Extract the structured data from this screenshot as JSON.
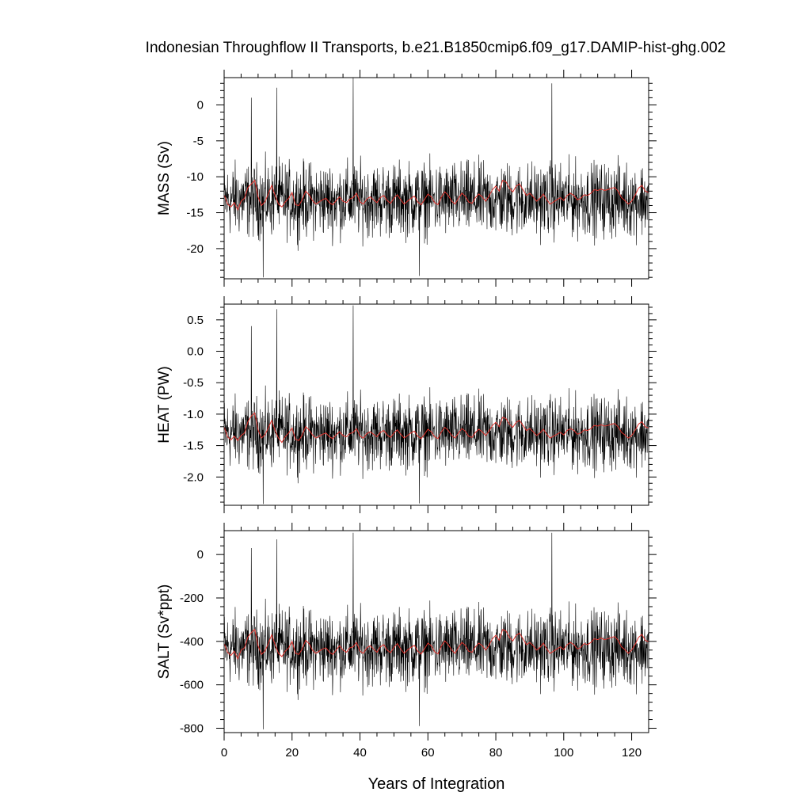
{
  "title": "Indonesian Throughflow II Transports, b.e21.B1850cmip6.f09_g17.DAMIP-hist-ghg.002",
  "xlabel": "Years of Integration",
  "colors": {
    "raw": "#000000",
    "smooth": "#e0302a",
    "frame": "#000000"
  },
  "chart_data": [
    {
      "type": "line",
      "ylabel": "MASS (Sv)",
      "xlim": [
        0,
        125
      ],
      "ylim": [
        -24.2,
        3.8
      ],
      "x_ticks": [
        0,
        20,
        40,
        60,
        80,
        100,
        120
      ],
      "x_tick_labels": [
        "0",
        "20",
        "40",
        "60",
        "80",
        "100",
        "120"
      ],
      "y_ticks": [
        0,
        -5,
        -10,
        -15,
        -20
      ],
      "y_tick_labels": [
        "0",
        "-5",
        "-10",
        "-15",
        "-20"
      ],
      "series": [
        {
          "role": "monthly",
          "mean": -13.2,
          "amp": 4.0,
          "samples_per_year": 12,
          "spikes": [
            [
              8,
              1.0
            ],
            [
              15.5,
              2.4
            ],
            [
              38,
              3.8
            ],
            [
              96.5,
              3.0
            ],
            [
              11.5,
              -24.0
            ],
            [
              57.5,
              -23.8
            ]
          ]
        },
        {
          "role": "annual-smooth",
          "values": [
            -12.5,
            -13.8,
            -14.2,
            -13.6,
            -14.6,
            -13.4,
            -13.0,
            -11.5,
            -11.0,
            -10.5,
            -12.8,
            -14.0,
            -13.5,
            -12.4,
            -11.2,
            -12.6,
            -13.8,
            -14.2,
            -13.5,
            -13.0,
            -12.2,
            -13.9,
            -14.0,
            -13.2,
            -12.0,
            -12.5,
            -13.3,
            -13.8,
            -13.5,
            -13.2,
            -13.0,
            -13.6,
            -13.9,
            -13.3,
            -12.8,
            -13.4,
            -13.6,
            -13.1,
            -12.9,
            -12.3,
            -13.5,
            -13.8,
            -13.1,
            -12.8,
            -13.2,
            -13.6,
            -12.9,
            -12.6,
            -13.3,
            -13.7,
            -13.0,
            -12.5,
            -13.2,
            -13.8,
            -13.4,
            -13.0,
            -12.7,
            -13.5,
            -13.9,
            -13.2,
            -12.4,
            -12.8,
            -13.6,
            -13.9,
            -12.8,
            -12.1,
            -12.6,
            -13.4,
            -13.8,
            -13.0,
            -12.3,
            -12.7,
            -13.5,
            -13.7,
            -12.9,
            -12.4,
            -12.8,
            -13.4,
            -12.7,
            -11.8,
            -11.3,
            -12.0,
            -10.5,
            -10.7,
            -11.6,
            -12.1,
            -11.3,
            -11.0,
            -11.8,
            -12.6,
            -12.3,
            -12.8,
            -13.4,
            -13.0,
            -12.4,
            -13.2,
            -13.8,
            -13.5,
            -13.2,
            -12.9,
            -13.3,
            -12.6,
            -12.3,
            -12.6,
            -13.2,
            -13.0,
            -12.5,
            -12.6,
            -12.3,
            -11.8,
            -11.9,
            -11.7,
            -11.9,
            -11.8,
            -11.6,
            -11.5,
            -12.0,
            -12.9,
            -13.3,
            -13.8,
            -13.4,
            -12.6,
            -11.6,
            -11.2,
            -12.0,
            -12.2
          ]
        }
      ]
    },
    {
      "type": "line",
      "ylabel": "HEAT (PW)",
      "xlim": [
        0,
        125
      ],
      "ylim": [
        -2.45,
        0.75
      ],
      "x_ticks": [
        0,
        20,
        40,
        60,
        80,
        100,
        120
      ],
      "x_tick_labels": [
        "0",
        "20",
        "40",
        "60",
        "80",
        "100",
        "120"
      ],
      "y_ticks": [
        0.5,
        0.0,
        -0.5,
        -1.0,
        -1.5,
        -2.0
      ],
      "y_tick_labels": [
        "0.5",
        "0.0",
        "-0.5",
        "-1.0",
        "-1.5",
        "-2.0"
      ],
      "series": [
        {
          "role": "monthly",
          "mean": -1.3,
          "amp": 0.45,
          "samples_per_year": 12,
          "spikes": [
            [
              8,
              0.4
            ],
            [
              15.5,
              0.67
            ],
            [
              38,
              0.73
            ],
            [
              11.5,
              -2.43
            ],
            [
              57.5,
              -2.42
            ]
          ]
        },
        {
          "role": "annual-smooth",
          "values": [
            -1.2,
            -1.36,
            -1.41,
            -1.35,
            -1.42,
            -1.34,
            -1.3,
            -1.12,
            -1.03,
            -0.98,
            -1.25,
            -1.38,
            -1.33,
            -1.22,
            -1.1,
            -1.26,
            -1.38,
            -1.45,
            -1.36,
            -1.3,
            -1.22,
            -1.4,
            -1.42,
            -1.33,
            -1.2,
            -1.25,
            -1.33,
            -1.38,
            -1.35,
            -1.32,
            -1.3,
            -1.36,
            -1.39,
            -1.33,
            -1.28,
            -1.34,
            -1.36,
            -1.31,
            -1.29,
            -1.23,
            -1.35,
            -1.38,
            -1.31,
            -1.28,
            -1.32,
            -1.36,
            -1.29,
            -1.26,
            -1.33,
            -1.37,
            -1.3,
            -1.25,
            -1.32,
            -1.38,
            -1.34,
            -1.3,
            -1.27,
            -1.35,
            -1.39,
            -1.32,
            -1.24,
            -1.28,
            -1.36,
            -1.39,
            -1.28,
            -1.21,
            -1.26,
            -1.34,
            -1.38,
            -1.3,
            -1.23,
            -1.27,
            -1.35,
            -1.37,
            -1.29,
            -1.24,
            -1.28,
            -1.34,
            -1.27,
            -1.18,
            -1.13,
            -1.2,
            -1.05,
            -1.07,
            -1.16,
            -1.21,
            -1.13,
            -1.1,
            -1.18,
            -1.26,
            -1.23,
            -1.28,
            -1.34,
            -1.3,
            -1.24,
            -1.32,
            -1.38,
            -1.35,
            -1.32,
            -1.29,
            -1.33,
            -1.26,
            -1.23,
            -1.26,
            -1.32,
            -1.3,
            -1.25,
            -1.26,
            -1.23,
            -1.18,
            -1.19,
            -1.17,
            -1.19,
            -1.18,
            -1.16,
            -1.15,
            -1.2,
            -1.29,
            -1.33,
            -1.38,
            -1.34,
            -1.26,
            -1.16,
            -1.12,
            -1.2,
            -1.22
          ]
        }
      ]
    },
    {
      "type": "line",
      "ylabel": "SALT (Sv*ppt)",
      "xlim": [
        0,
        125
      ],
      "ylim": [
        -820,
        110
      ],
      "x_ticks": [
        0,
        20,
        40,
        60,
        80,
        100,
        120
      ],
      "x_tick_labels": [
        "0",
        "20",
        "40",
        "60",
        "80",
        "100",
        "120"
      ],
      "y_ticks": [
        0,
        -200,
        -400,
        -600,
        -800
      ],
      "y_tick_labels": [
        "0",
        "-200",
        "-400",
        "-600",
        "-800"
      ],
      "series": [
        {
          "role": "monthly",
          "mean": -430,
          "amp": 135,
          "samples_per_year": 12,
          "spikes": [
            [
              8,
              30
            ],
            [
              15.5,
              70
            ],
            [
              38,
              100
            ],
            [
              96.5,
              100
            ],
            [
              11.5,
              -805
            ],
            [
              57.5,
              -790
            ]
          ]
        },
        {
          "role": "annual-smooth",
          "values": [
            -410,
            -450,
            -465,
            -445,
            -480,
            -440,
            -430,
            -380,
            -360,
            -345,
            -420,
            -460,
            -445,
            -410,
            -370,
            -415,
            -455,
            -470,
            -445,
            -430,
            -400,
            -455,
            -460,
            -435,
            -395,
            -410,
            -440,
            -455,
            -445,
            -435,
            -430,
            -450,
            -460,
            -440,
            -420,
            -440,
            -450,
            -430,
            -425,
            -405,
            -445,
            -455,
            -430,
            -420,
            -435,
            -450,
            -425,
            -415,
            -440,
            -452,
            -428,
            -410,
            -435,
            -455,
            -440,
            -428,
            -418,
            -445,
            -458,
            -435,
            -408,
            -420,
            -448,
            -458,
            -420,
            -398,
            -415,
            -440,
            -455,
            -428,
            -405,
            -418,
            -445,
            -450,
            -425,
            -408,
            -420,
            -440,
            -418,
            -388,
            -372,
            -395,
            -345,
            -352,
            -382,
            -398,
            -372,
            -362,
            -388,
            -415,
            -405,
            -420,
            -440,
            -428,
            -408,
            -435,
            -455,
            -445,
            -435,
            -425,
            -438,
            -415,
            -405,
            -415,
            -435,
            -428,
            -410,
            -415,
            -405,
            -388,
            -392,
            -385,
            -392,
            -388,
            -382,
            -378,
            -395,
            -425,
            -438,
            -455,
            -440,
            -415,
            -382,
            -368,
            -395,
            -402
          ]
        }
      ]
    }
  ]
}
